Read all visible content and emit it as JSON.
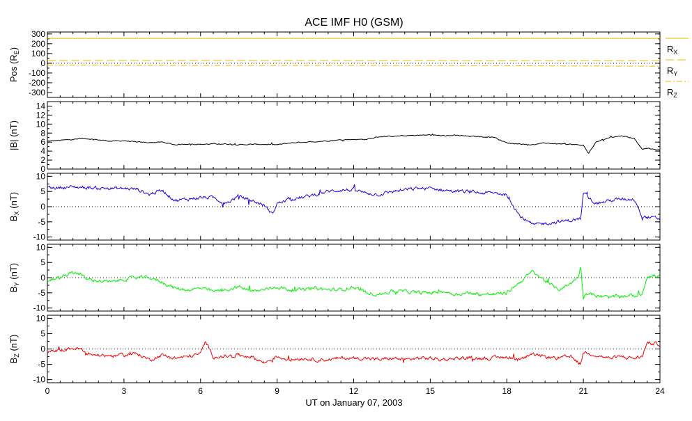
{
  "title": "ACE IMF H0 (GSM)",
  "xlabel": "UT on January 07, 2003",
  "x_tick_labels": [
    "0",
    "3",
    "6",
    "9",
    "12",
    "15",
    "18",
    "21",
    "24"
  ],
  "chart_data": [
    {
      "type": "line",
      "panel": "position",
      "ylabel": "Pos (R",
      "ylabel_sub": "E",
      "ylabel_end": ")",
      "ylim": [
        -350,
        320
      ],
      "yticks": [
        300,
        200,
        100,
        0,
        -100,
        -200,
        -300
      ],
      "zero_line": true,
      "x_range_hours": [
        0,
        24
      ],
      "series": [
        {
          "name": "R",
          "name_sub": "X",
          "color": "#f0b800",
          "dash": "",
          "x": [
            0,
            24
          ],
          "y": [
            255,
            255
          ]
        },
        {
          "name": "R",
          "name_sub": "Y",
          "color": "#f0b800",
          "dash": "12,5",
          "x": [
            0,
            6,
            12,
            18,
            20,
            24
          ],
          "y": [
            28,
            28,
            26,
            25,
            25,
            25
          ]
        },
        {
          "name": "R",
          "name_sub": "Z",
          "color": "#f0b800",
          "dash": "8,3,2,3",
          "x": [
            0,
            6,
            12,
            18,
            20,
            24
          ],
          "y": [
            -20,
            -22,
            -22,
            -24,
            -28,
            -30
          ]
        }
      ]
    },
    {
      "type": "line",
      "panel": "B_total",
      "ylabel": "|B| (nT)",
      "ylim": [
        0,
        15
      ],
      "yticks": [
        14,
        12,
        10,
        8,
        6,
        4,
        2,
        0
      ],
      "zero_line": false,
      "color": "#000000",
      "noise": 0.12,
      "x": [
        0,
        0.5,
        1,
        1.5,
        2,
        2.5,
        3,
        3.5,
        4,
        4.5,
        5,
        5.5,
        6,
        6.5,
        7,
        7.5,
        8,
        8.5,
        9,
        9.5,
        10,
        10.5,
        11,
        11.5,
        12,
        12.5,
        13,
        13.5,
        14,
        14.5,
        15,
        15.5,
        16,
        16.5,
        17,
        17.5,
        18,
        18.5,
        19,
        19.5,
        20,
        20.5,
        21,
        21.2,
        21.5,
        22,
        22.5,
        23,
        23.3,
        23.5,
        24
      ],
      "y": [
        6.2,
        6.4,
        6.6,
        6.8,
        6.5,
        6.2,
        6.3,
        6.0,
        5.9,
        6.0,
        5.4,
        5.6,
        5.5,
        5.6,
        5.6,
        5.4,
        5.5,
        5.5,
        5.4,
        5.8,
        6.0,
        6.1,
        6.3,
        6.5,
        6.6,
        6.6,
        7.2,
        7.3,
        7.4,
        7.5,
        7.6,
        7.4,
        7.5,
        7.3,
        7.2,
        7.1,
        5.8,
        5.6,
        5.4,
        5.8,
        5.6,
        5.5,
        5.3,
        3.5,
        6.0,
        7.0,
        7.4,
        6.8,
        4.5,
        4.6,
        4.2
      ]
    },
    {
      "type": "line",
      "panel": "Bx",
      "ylabel": "B",
      "ylabel_sub": "X",
      "ylabel_end": " (nT)",
      "ylim": [
        -11,
        11
      ],
      "yticks": [
        10,
        5,
        0,
        -5,
        -10
      ],
      "zero_line": true,
      "color": "#2200dd",
      "noise": 0.45,
      "x": [
        0,
        0.5,
        1,
        1.5,
        2,
        2.5,
        3,
        3.5,
        4,
        4.5,
        5,
        5.5,
        6,
        6.5,
        7,
        7.5,
        8,
        8.5,
        8.8,
        9,
        9.5,
        10,
        10.5,
        11,
        11.5,
        12,
        12.5,
        13,
        13.5,
        14,
        14.5,
        15,
        15.5,
        16,
        16.5,
        17,
        17.5,
        18,
        18.5,
        19,
        19.5,
        20,
        20.5,
        20.9,
        21,
        21.5,
        22,
        22.5,
        23,
        23.3,
        23.5,
        24
      ],
      "y": [
        6.2,
        6.3,
        6.5,
        6.3,
        6.1,
        6.0,
        6.0,
        5.8,
        4.0,
        5.5,
        2.0,
        2.5,
        3.0,
        3.0,
        1.0,
        3.5,
        2.0,
        0.5,
        -2.5,
        1.0,
        2.5,
        3.0,
        4.0,
        5.0,
        5.5,
        5.5,
        4.5,
        4.0,
        5.0,
        5.5,
        6.0,
        6.0,
        5.5,
        5.0,
        5.0,
        4.5,
        4.5,
        4.0,
        -3.0,
        -6.0,
        -5.5,
        -5.0,
        -4.5,
        -4.0,
        4.5,
        1.0,
        2.0,
        2.5,
        2.5,
        -3.0,
        -3.5,
        -4.0
      ]
    },
    {
      "type": "line",
      "panel": "By",
      "ylabel": "B",
      "ylabel_sub": "Y",
      "ylabel_end": " (nT)",
      "ylim": [
        -11,
        11
      ],
      "yticks": [
        10,
        5,
        0,
        -5,
        -10
      ],
      "zero_line": true,
      "color": "#00ee00",
      "noise": 0.45,
      "x": [
        0,
        0.5,
        1,
        1.3,
        1.5,
        2,
        2.5,
        3,
        3.5,
        4,
        4.5,
        5,
        5.5,
        6,
        6.5,
        7,
        7.5,
        8,
        8.5,
        9,
        9.5,
        10,
        10.5,
        11,
        11.5,
        12,
        12.5,
        13,
        13.5,
        14,
        14.5,
        15,
        15.5,
        16,
        16.5,
        17,
        17.5,
        18,
        18.5,
        19,
        19.5,
        20,
        20.5,
        20.8,
        20.9,
        21,
        21.1,
        21.5,
        22,
        22.5,
        23,
        23.3,
        23.5,
        24
      ],
      "y": [
        -1.0,
        0.0,
        1.5,
        1.5,
        -0.5,
        -1.0,
        -1.5,
        -0.5,
        0.0,
        0.0,
        -1.5,
        -3.5,
        -4.0,
        -3.5,
        -4.5,
        -4.0,
        -3.0,
        -4.5,
        -4.0,
        -3.0,
        -4.0,
        -4.0,
        -3.5,
        -4.0,
        -4.0,
        -3.0,
        -5.0,
        -5.5,
        -4.5,
        -4.5,
        -5.0,
        -5.0,
        -4.5,
        -5.5,
        -5.0,
        -5.5,
        -5.5,
        -5.0,
        -1.5,
        2.0,
        -1.0,
        -4.0,
        -2.0,
        0.5,
        4.0,
        -7.0,
        -5.0,
        -6.0,
        -6.5,
        -6.0,
        -6.0,
        -5.5,
        0.5,
        0.5
      ]
    },
    {
      "type": "line",
      "panel": "Bz",
      "ylabel": "B",
      "ylabel_sub": "Z",
      "ylabel_end": " (nT)",
      "ylim": [
        -11,
        11
      ],
      "yticks": [
        10,
        5,
        0,
        -5,
        -10
      ],
      "zero_line": true,
      "color": "#ee0000",
      "noise": 0.45,
      "x": [
        0,
        0.5,
        1,
        1.3,
        1.5,
        2,
        2.5,
        3,
        3.5,
        4,
        4.5,
        5,
        5.5,
        6,
        6.2,
        6.5,
        7,
        7.5,
        8,
        8.5,
        9,
        9.5,
        10,
        10.5,
        11,
        11.5,
        12,
        12.5,
        13,
        13.5,
        14,
        14.5,
        15,
        15.5,
        16,
        16.5,
        17,
        17.5,
        18,
        18.5,
        19,
        19.5,
        20,
        20.5,
        20.9,
        21,
        21.5,
        22,
        22.5,
        23,
        23.3,
        23.5,
        24
      ],
      "y": [
        -1.2,
        -0.5,
        0.2,
        0.0,
        -1.5,
        -2.0,
        -2.2,
        -2.0,
        -1.5,
        -3.5,
        -2.0,
        -3.0,
        -2.5,
        -1.5,
        2.5,
        -2.5,
        -2.5,
        -2.0,
        -2.5,
        -4.5,
        -2.5,
        -3.5,
        -3.0,
        -3.5,
        -3.5,
        -3.0,
        -3.0,
        -3.0,
        -3.5,
        -3.0,
        -3.5,
        -3.0,
        -3.0,
        -3.5,
        -3.0,
        -3.0,
        -3.0,
        -3.0,
        -2.5,
        -3.5,
        -2.0,
        -2.5,
        -3.0,
        -2.5,
        -5.0,
        -1.0,
        -2.0,
        -3.0,
        -2.5,
        -3.0,
        -2.5,
        2.0,
        1.5
      ]
    }
  ]
}
